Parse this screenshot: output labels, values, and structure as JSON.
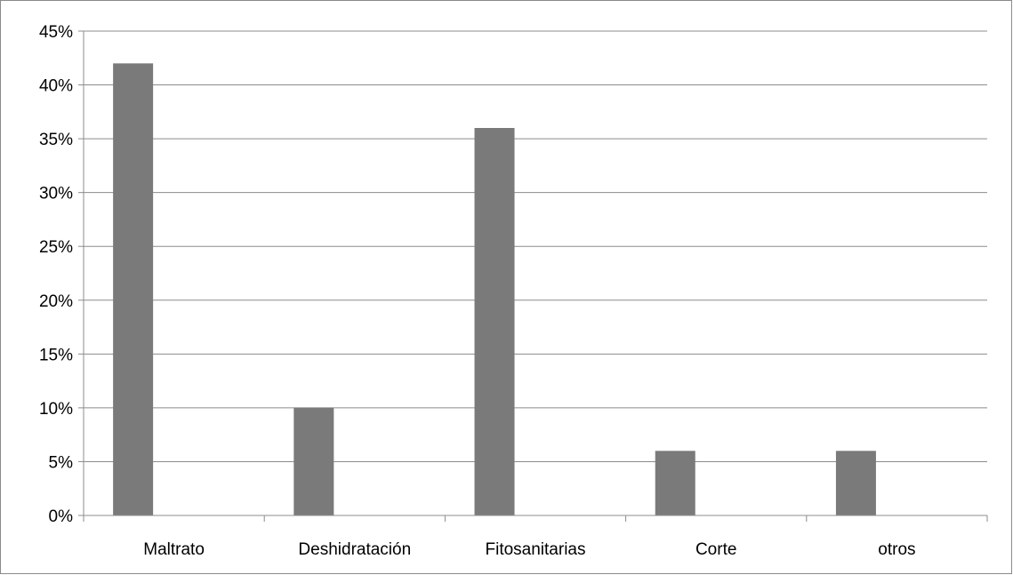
{
  "chart_data": {
    "type": "bar",
    "categories": [
      "Maltrato",
      "Deshidratación",
      "Fitosanitarias",
      "Corte",
      "otros"
    ],
    "values": [
      42,
      10,
      36,
      6,
      6
    ],
    "value_format": "percent",
    "title": "",
    "xlabel": "",
    "ylabel": "",
    "ylim": [
      0,
      45
    ],
    "yticks": [
      "0%",
      "5%",
      "10%",
      "15%",
      "20%",
      "25%",
      "30%",
      "35%",
      "40%",
      "45%"
    ],
    "grid": true,
    "legend": "none",
    "bar_color": "#7a7a7a",
    "grid_color": "#8c8c8c"
  }
}
